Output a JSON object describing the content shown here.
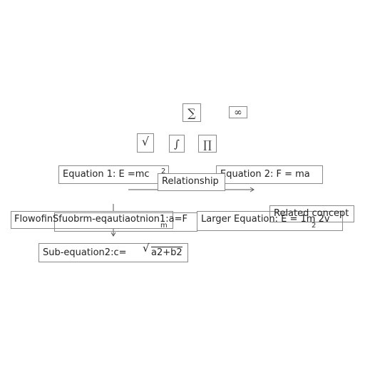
{
  "symbols": {
    "sum": "∑",
    "infinity": "∞",
    "sqrt": "√",
    "integral": "∫",
    "product": "∏"
  },
  "equation1": {
    "text": "Equation 1:  E  =mc",
    "exponent": "2"
  },
  "relationship": "Relationship",
  "equation2": "Equation 2: F = ma",
  "flow_text": "FlowofinSfuobrm-eqautiaotnion1:a=F",
  "flow_sub": "m",
  "larger_equation": {
    "text": "Larger Equation: E = 1m 2v",
    "sub": "2"
  },
  "related_concept": "Related concept",
  "sub_equation2": {
    "text": "Sub-equation2:c=",
    "radical": "√",
    "radicand": "a2+b2"
  }
}
